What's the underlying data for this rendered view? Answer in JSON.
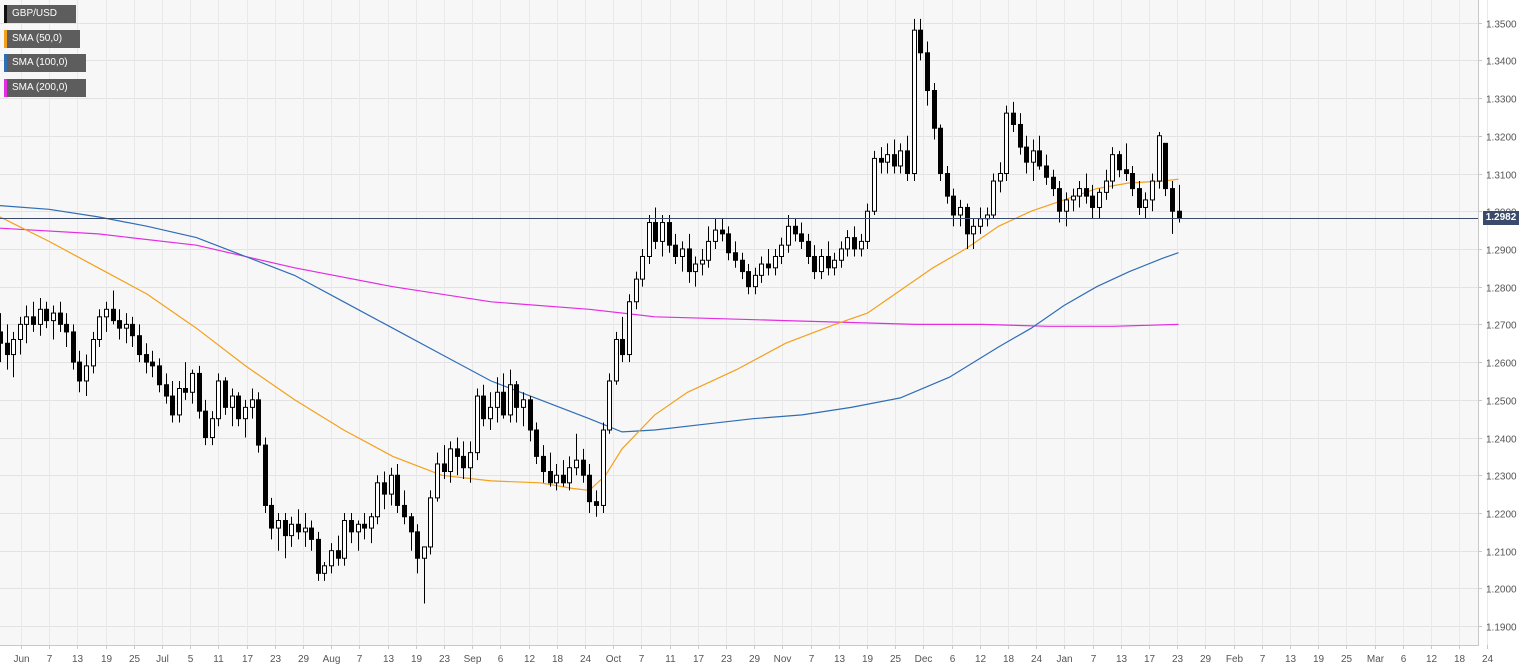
{
  "chart_data": {
    "type": "candlestick",
    "symbol": "GBP/USD",
    "timeframe": "daily",
    "legend": [
      {
        "label": "GBP/USD",
        "color": "#111111"
      },
      {
        "label": "SMA (50,0)",
        "color": "#f4a01b"
      },
      {
        "label": "SMA (100,0)",
        "color": "#2f6db5"
      },
      {
        "label": "SMA (200,0)",
        "color": "#e32de3"
      }
    ],
    "last_price": 1.2982,
    "last_price_label": "1.2982",
    "ylim": [
      1.185,
      1.356
    ],
    "y_ticks": [
      "1.1900",
      "1.2000",
      "1.2100",
      "1.2200",
      "1.2300",
      "1.2400",
      "1.2500",
      "1.2600",
      "1.2700",
      "1.2800",
      "1.2900",
      "1.3000",
      "1.3100",
      "1.3200",
      "1.3300",
      "1.3400",
      "1.3500"
    ],
    "x_ticks": [
      "Jun",
      "7",
      "13",
      "19",
      "25",
      "Jul",
      "5",
      "11",
      "17",
      "23",
      "29",
      "Aug",
      "7",
      "13",
      "19",
      "23",
      "Sep",
      "6",
      "12",
      "18",
      "24",
      "Oct",
      "7",
      "11",
      "17",
      "23",
      "29",
      "Nov",
      "7",
      "13",
      "19",
      "25",
      "Dec",
      "6",
      "12",
      "18",
      "24",
      "Jan",
      "7",
      "13",
      "17",
      "23",
      "29",
      "Feb",
      "7",
      "13",
      "19",
      "25",
      "Mar",
      "6",
      "12",
      "18",
      "24"
    ],
    "candles": [
      [
        1.268,
        1.273,
        1.26,
        1.265
      ],
      [
        1.265,
        1.27,
        1.258,
        1.262
      ],
      [
        1.262,
        1.268,
        1.256,
        1.266
      ],
      [
        1.266,
        1.272,
        1.262,
        1.27
      ],
      [
        1.27,
        1.275,
        1.265,
        1.272
      ],
      [
        1.272,
        1.276,
        1.268,
        1.27
      ],
      [
        1.27,
        1.277,
        1.267,
        1.274
      ],
      [
        1.274,
        1.276,
        1.269,
        1.271
      ],
      [
        1.271,
        1.275,
        1.266,
        1.273
      ],
      [
        1.273,
        1.276,
        1.268,
        1.27
      ],
      [
        1.27,
        1.273,
        1.264,
        1.268
      ],
      [
        1.268,
        1.27,
        1.258,
        1.26
      ],
      [
        1.26,
        1.263,
        1.252,
        1.255
      ],
      [
        1.255,
        1.262,
        1.251,
        1.259
      ],
      [
        1.259,
        1.268,
        1.257,
        1.266
      ],
      [
        1.266,
        1.274,
        1.264,
        1.272
      ],
      [
        1.272,
        1.276,
        1.268,
        1.274
      ],
      [
        1.274,
        1.279,
        1.27,
        1.271
      ],
      [
        1.271,
        1.274,
        1.266,
        1.269
      ],
      [
        1.269,
        1.273,
        1.265,
        1.27
      ],
      [
        1.27,
        1.272,
        1.264,
        1.267
      ],
      [
        1.267,
        1.27,
        1.26,
        1.262
      ],
      [
        1.262,
        1.265,
        1.257,
        1.26
      ],
      [
        1.26,
        1.263,
        1.256,
        1.259
      ],
      [
        1.259,
        1.261,
        1.252,
        1.254
      ],
      [
        1.254,
        1.257,
        1.249,
        1.251
      ],
      [
        1.251,
        1.255,
        1.244,
        1.246
      ],
      [
        1.246,
        1.255,
        1.244,
        1.253
      ],
      [
        1.253,
        1.26,
        1.25,
        1.252
      ],
      [
        1.252,
        1.258,
        1.249,
        1.257
      ],
      [
        1.257,
        1.259,
        1.245,
        1.247
      ],
      [
        1.247,
        1.25,
        1.238,
        1.24
      ],
      [
        1.24,
        1.247,
        1.238,
        1.245
      ],
      [
        1.245,
        1.257,
        1.243,
        1.255
      ],
      [
        1.255,
        1.256,
        1.246,
        1.248
      ],
      [
        1.248,
        1.253,
        1.243,
        1.251
      ],
      [
        1.251,
        1.252,
        1.243,
        1.245
      ],
      [
        1.245,
        1.25,
        1.24,
        1.248
      ],
      [
        1.248,
        1.253,
        1.245,
        1.25
      ],
      [
        1.25,
        1.252,
        1.236,
        1.238
      ],
      [
        1.238,
        1.24,
        1.22,
        1.222
      ],
      [
        1.222,
        1.224,
        1.213,
        1.216
      ],
      [
        1.216,
        1.22,
        1.21,
        1.218
      ],
      [
        1.218,
        1.22,
        1.208,
        1.214
      ],
      [
        1.214,
        1.219,
        1.211,
        1.217
      ],
      [
        1.217,
        1.221,
        1.213,
        1.215
      ],
      [
        1.215,
        1.22,
        1.211,
        1.216
      ],
      [
        1.216,
        1.218,
        1.21,
        1.213
      ],
      [
        1.213,
        1.215,
        1.202,
        1.204
      ],
      [
        1.204,
        1.207,
        1.202,
        1.206
      ],
      [
        1.206,
        1.212,
        1.204,
        1.21
      ],
      [
        1.21,
        1.214,
        1.206,
        1.208
      ],
      [
        1.208,
        1.22,
        1.206,
        1.218
      ],
      [
        1.218,
        1.22,
        1.212,
        1.215
      ],
      [
        1.215,
        1.218,
        1.21,
        1.217
      ],
      [
        1.217,
        1.22,
        1.213,
        1.216
      ],
      [
        1.216,
        1.22,
        1.212,
        1.219
      ],
      [
        1.219,
        1.23,
        1.217,
        1.228
      ],
      [
        1.228,
        1.231,
        1.221,
        1.225
      ],
      [
        1.225,
        1.232,
        1.222,
        1.23
      ],
      [
        1.23,
        1.233,
        1.22,
        1.222
      ],
      [
        1.222,
        1.226,
        1.217,
        1.219
      ],
      [
        1.219,
        1.22,
        1.21,
        1.215
      ],
      [
        1.215,
        1.217,
        1.204,
        1.208
      ],
      [
        1.208,
        1.21,
        1.196,
        1.211
      ],
      [
        1.211,
        1.226,
        1.209,
        1.224
      ],
      [
        1.224,
        1.236,
        1.223,
        1.233
      ],
      [
        1.233,
        1.238,
        1.229,
        1.231
      ],
      [
        1.231,
        1.239,
        1.228,
        1.237
      ],
      [
        1.237,
        1.24,
        1.23,
        1.235
      ],
      [
        1.235,
        1.239,
        1.229,
        1.232
      ],
      [
        1.232,
        1.239,
        1.228,
        1.236
      ],
      [
        1.236,
        1.253,
        1.234,
        1.251
      ],
      [
        1.251,
        1.254,
        1.243,
        1.245
      ],
      [
        1.245,
        1.252,
        1.242,
        1.248
      ],
      [
        1.248,
        1.256,
        1.244,
        1.252
      ],
      [
        1.252,
        1.257,
        1.245,
        1.246
      ],
      [
        1.246,
        1.258,
        1.244,
        1.254
      ],
      [
        1.254,
        1.255,
        1.244,
        1.248
      ],
      [
        1.248,
        1.252,
        1.243,
        1.25
      ],
      [
        1.25,
        1.251,
        1.239,
        1.242
      ],
      [
        1.242,
        1.244,
        1.233,
        1.235
      ],
      [
        1.235,
        1.238,
        1.228,
        1.231
      ],
      [
        1.231,
        1.236,
        1.227,
        1.228
      ],
      [
        1.228,
        1.233,
        1.226,
        1.23
      ],
      [
        1.23,
        1.234,
        1.227,
        1.228
      ],
      [
        1.228,
        1.235,
        1.226,
        1.232
      ],
      [
        1.232,
        1.241,
        1.23,
        1.234
      ],
      [
        1.234,
        1.237,
        1.228,
        1.23
      ],
      [
        1.23,
        1.233,
        1.22,
        1.223
      ],
      [
        1.223,
        1.226,
        1.219,
        1.222
      ],
      [
        1.222,
        1.244,
        1.22,
        1.242
      ],
      [
        1.242,
        1.257,
        1.241,
        1.255
      ],
      [
        1.255,
        1.268,
        1.254,
        1.266
      ],
      [
        1.266,
        1.272,
        1.26,
        1.262
      ],
      [
        1.262,
        1.278,
        1.26,
        1.276
      ],
      [
        1.276,
        1.284,
        1.274,
        1.282
      ],
      [
        1.282,
        1.29,
        1.28,
        1.288
      ],
      [
        1.288,
        1.299,
        1.286,
        1.297
      ],
      [
        1.297,
        1.301,
        1.29,
        1.292
      ],
      [
        1.292,
        1.299,
        1.288,
        1.297
      ],
      [
        1.297,
        1.299,
        1.289,
        1.291
      ],
      [
        1.291,
        1.294,
        1.286,
        1.288
      ],
      [
        1.288,
        1.292,
        1.284,
        1.29
      ],
      [
        1.29,
        1.294,
        1.281,
        1.284
      ],
      [
        1.284,
        1.288,
        1.28,
        1.286
      ],
      [
        1.286,
        1.29,
        1.283,
        1.287
      ],
      [
        1.287,
        1.296,
        1.285,
        1.292
      ],
      [
        1.292,
        1.298,
        1.29,
        1.295
      ],
      [
        1.295,
        1.298,
        1.292,
        1.294
      ],
      [
        1.294,
        1.296,
        1.287,
        1.289
      ],
      [
        1.289,
        1.292,
        1.285,
        1.287
      ],
      [
        1.287,
        1.289,
        1.282,
        1.284
      ],
      [
        1.284,
        1.286,
        1.278,
        1.28
      ],
      [
        1.28,
        1.285,
        1.278,
        1.283
      ],
      [
        1.283,
        1.288,
        1.281,
        1.286
      ],
      [
        1.286,
        1.29,
        1.283,
        1.285
      ],
      [
        1.285,
        1.29,
        1.283,
        1.288
      ],
      [
        1.288,
        1.293,
        1.286,
        1.291
      ],
      [
        1.291,
        1.299,
        1.289,
        1.296
      ],
      [
        1.296,
        1.298,
        1.292,
        1.294
      ],
      [
        1.294,
        1.297,
        1.29,
        1.292
      ],
      [
        1.292,
        1.294,
        1.286,
        1.288
      ],
      [
        1.288,
        1.291,
        1.282,
        1.284
      ],
      [
        1.284,
        1.29,
        1.282,
        1.288
      ],
      [
        1.288,
        1.292,
        1.283,
        1.285
      ],
      [
        1.285,
        1.289,
        1.283,
        1.287
      ],
      [
        1.287,
        1.292,
        1.285,
        1.29
      ],
      [
        1.29,
        1.295,
        1.288,
        1.293
      ],
      [
        1.293,
        1.296,
        1.288,
        1.29
      ],
      [
        1.29,
        1.294,
        1.288,
        1.292
      ],
      [
        1.292,
        1.302,
        1.29,
        1.3
      ],
      [
        1.3,
        1.316,
        1.299,
        1.314
      ],
      [
        1.314,
        1.317,
        1.31,
        1.313
      ],
      [
        1.313,
        1.318,
        1.31,
        1.315
      ],
      [
        1.315,
        1.319,
        1.31,
        1.312
      ],
      [
        1.312,
        1.318,
        1.31,
        1.316
      ],
      [
        1.316,
        1.32,
        1.308,
        1.31
      ],
      [
        1.31,
        1.351,
        1.308,
        1.348
      ],
      [
        1.348,
        1.351,
        1.34,
        1.342
      ],
      [
        1.342,
        1.345,
        1.328,
        1.332
      ],
      [
        1.332,
        1.334,
        1.319,
        1.322
      ],
      [
        1.322,
        1.323,
        1.308,
        1.31
      ],
      [
        1.31,
        1.312,
        1.302,
        1.304
      ],
      [
        1.304,
        1.306,
        1.296,
        1.299
      ],
      [
        1.299,
        1.303,
        1.296,
        1.301
      ],
      [
        1.301,
        1.302,
        1.29,
        1.294
      ],
      [
        1.294,
        1.298,
        1.29,
        1.296
      ],
      [
        1.296,
        1.301,
        1.294,
        1.298
      ],
      [
        1.298,
        1.301,
        1.296,
        1.299
      ],
      [
        1.299,
        1.31,
        1.298,
        1.308
      ],
      [
        1.308,
        1.313,
        1.305,
        1.31
      ],
      [
        1.31,
        1.328,
        1.308,
        1.326
      ],
      [
        1.326,
        1.329,
        1.321,
        1.323
      ],
      [
        1.323,
        1.326,
        1.315,
        1.317
      ],
      [
        1.317,
        1.32,
        1.31,
        1.313
      ],
      [
        1.313,
        1.319,
        1.308,
        1.316
      ],
      [
        1.316,
        1.32,
        1.311,
        1.312
      ],
      [
        1.312,
        1.315,
        1.307,
        1.309
      ],
      [
        1.309,
        1.311,
        1.304,
        1.306
      ],
      [
        1.306,
        1.308,
        1.297,
        1.3
      ],
      [
        1.3,
        1.305,
        1.296,
        1.303
      ],
      [
        1.303,
        1.306,
        1.3,
        1.304
      ],
      [
        1.304,
        1.308,
        1.301,
        1.306
      ],
      [
        1.306,
        1.31,
        1.302,
        1.304
      ],
      [
        1.304,
        1.307,
        1.298,
        1.301
      ],
      [
        1.301,
        1.306,
        1.298,
        1.305
      ],
      [
        1.305,
        1.311,
        1.303,
        1.308
      ],
      [
        1.308,
        1.317,
        1.306,
        1.315
      ],
      [
        1.315,
        1.316,
        1.309,
        1.311
      ],
      [
        1.311,
        1.318,
        1.308,
        1.31
      ],
      [
        1.31,
        1.312,
        1.304,
        1.306
      ],
      [
        1.306,
        1.308,
        1.299,
        1.301
      ],
      [
        1.301,
        1.305,
        1.298,
        1.303
      ],
      [
        1.303,
        1.31,
        1.3,
        1.308
      ],
      [
        1.308,
        1.321,
        1.306,
        1.32
      ],
      [
        1.318,
        1.318,
        1.304,
        1.306
      ],
      [
        1.306,
        1.308,
        1.294,
        1.3
      ],
      [
        1.3,
        1.307,
        1.297,
        1.2982
      ]
    ],
    "sma_50": [
      [
        0,
        1.2985
      ],
      [
        15,
        1.292
      ],
      [
        30,
        1.285
      ],
      [
        45,
        1.278
      ],
      [
        60,
        1.269
      ],
      [
        75,
        1.259
      ],
      [
        90,
        1.25
      ],
      [
        105,
        1.242
      ],
      [
        120,
        1.235
      ],
      [
        135,
        1.23
      ],
      [
        150,
        1.2285
      ],
      [
        165,
        1.228
      ],
      [
        175,
        1.2265
      ],
      [
        180,
        1.226
      ],
      [
        185,
        1.23
      ],
      [
        190,
        1.237
      ],
      [
        200,
        1.246
      ],
      [
        210,
        1.252
      ],
      [
        225,
        1.258
      ],
      [
        240,
        1.265
      ],
      [
        255,
        1.27
      ],
      [
        265,
        1.273
      ],
      [
        275,
        1.279
      ],
      [
        285,
        1.285
      ],
      [
        295,
        1.29
      ],
      [
        305,
        1.296
      ],
      [
        315,
        1.3
      ],
      [
        325,
        1.303
      ],
      [
        335,
        1.306
      ],
      [
        345,
        1.3075
      ],
      [
        355,
        1.308
      ],
      [
        360,
        1.3085
      ]
    ],
    "sma_100": [
      [
        0,
        1.3015
      ],
      [
        15,
        1.3005
      ],
      [
        30,
        1.2985
      ],
      [
        45,
        1.296
      ],
      [
        60,
        1.293
      ],
      [
        75,
        1.288
      ],
      [
        90,
        1.283
      ],
      [
        105,
        1.276
      ],
      [
        120,
        1.269
      ],
      [
        135,
        1.262
      ],
      [
        150,
        1.255
      ],
      [
        165,
        1.25
      ],
      [
        180,
        1.245
      ],
      [
        190,
        1.2415
      ],
      [
        200,
        1.242
      ],
      [
        215,
        1.2435
      ],
      [
        230,
        1.245
      ],
      [
        245,
        1.246
      ],
      [
        260,
        1.248
      ],
      [
        275,
        1.2505
      ],
      [
        290,
        1.256
      ],
      [
        305,
        1.264
      ],
      [
        315,
        1.269
      ],
      [
        325,
        1.275
      ],
      [
        335,
        1.28
      ],
      [
        345,
        1.284
      ],
      [
        355,
        1.2875
      ],
      [
        360,
        1.289
      ]
    ],
    "sma_200": [
      [
        0,
        1.2955
      ],
      [
        30,
        1.294
      ],
      [
        60,
        1.291
      ],
      [
        90,
        1.285
      ],
      [
        120,
        1.28
      ],
      [
        150,
        1.276
      ],
      [
        180,
        1.274
      ],
      [
        200,
        1.272
      ],
      [
        220,
        1.2715
      ],
      [
        240,
        1.271
      ],
      [
        260,
        1.2705
      ],
      [
        280,
        1.27
      ],
      [
        300,
        1.27
      ],
      [
        320,
        1.2695
      ],
      [
        340,
        1.2695
      ],
      [
        360,
        1.27
      ]
    ]
  }
}
